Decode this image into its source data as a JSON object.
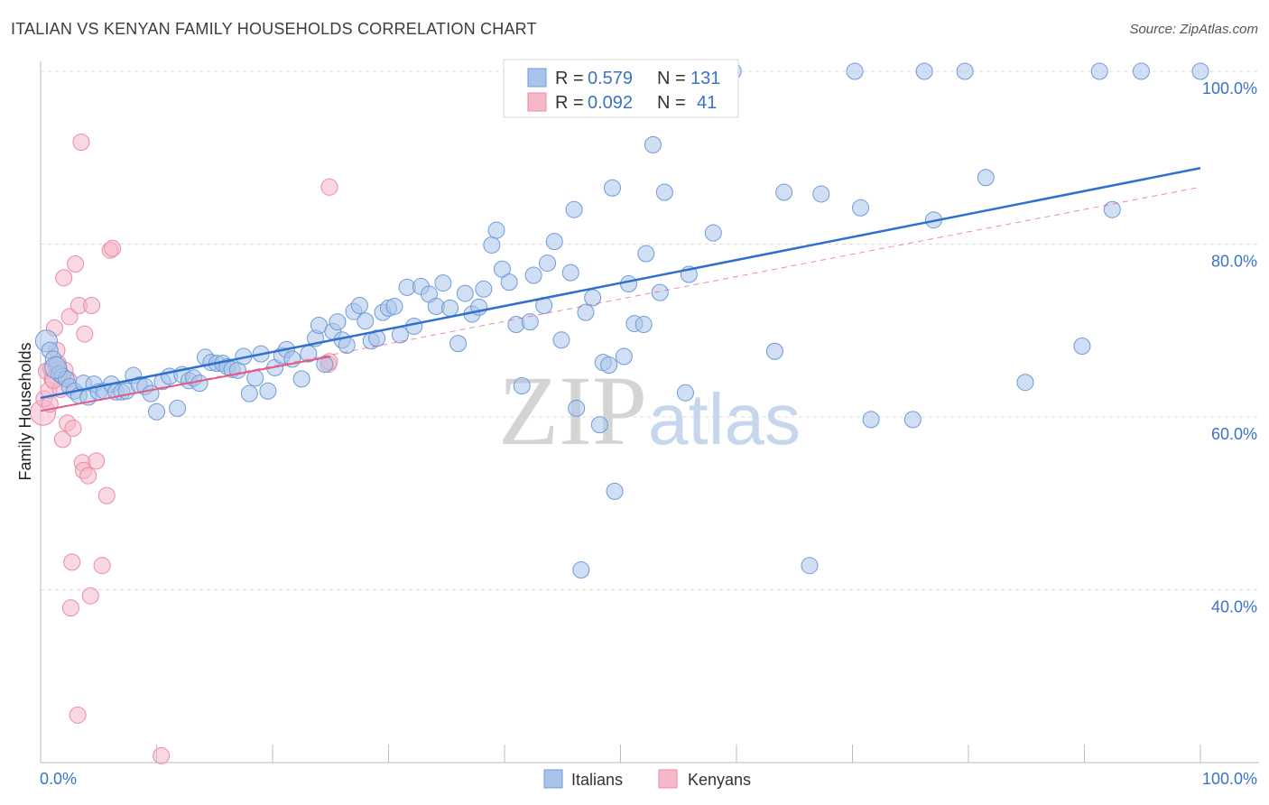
{
  "title": "ITALIAN VS KENYAN FAMILY HOUSEHOLDS CORRELATION CHART",
  "source": "Source: ZipAtlas.com",
  "watermark": {
    "zip": "ZIP",
    "atlas": "atlas"
  },
  "legend_top": {
    "r_label": "R =",
    "n_label": "N =",
    "rows": [
      {
        "r": "0.579",
        "n": "131"
      },
      {
        "r": "0.092",
        "n": "41"
      }
    ]
  },
  "legend_bottom": [
    "Italians",
    "Kenyans"
  ],
  "colors": {
    "italians_fill": "#a9c4ea",
    "italians_stroke": "#6f9bd8",
    "italians_line": "#2f6fce",
    "kenyans_fill": "#f6b8c9",
    "kenyans_stroke": "#ea8aa8",
    "kenyans_line": "#e05b87",
    "tick_text": "#3a73c8"
  },
  "chart_data": {
    "type": "scatter",
    "title": "ITALIAN VS KENYAN FAMILY HOUSEHOLDS CORRELATION CHART",
    "xlabel": "",
    "ylabel": "Family Households",
    "xlim": [
      0,
      100
    ],
    "ylim": [
      20,
      100
    ],
    "x_tick_labels": [
      "0.0%",
      "100.0%"
    ],
    "y_ticks": [
      40,
      60,
      80,
      100
    ],
    "y_tick_labels": [
      "40.0%",
      "60.0%",
      "80.0%",
      "100.0%"
    ],
    "grid": true,
    "series": [
      {
        "name": "Italians",
        "r": 0.579,
        "n": 131,
        "trend": {
          "x": [
            0,
            100
          ],
          "y": [
            62.2,
            88.8
          ]
        },
        "points": [
          [
            0.5,
            68.8
          ],
          [
            0.8,
            67.7
          ],
          [
            1.1,
            66.7
          ],
          [
            1.4,
            66.0
          ],
          [
            1.6,
            65.0
          ],
          [
            1.9,
            64.7
          ],
          [
            2.2,
            64.4
          ],
          [
            2.5,
            63.5
          ],
          [
            2.9,
            63.0
          ],
          [
            3.3,
            62.5
          ],
          [
            3.7,
            63.9
          ],
          [
            4.1,
            62.3
          ],
          [
            4.6,
            63.8
          ],
          [
            5.0,
            62.9
          ],
          [
            5.5,
            63.0
          ],
          [
            6.1,
            63.8
          ],
          [
            6.5,
            62.9
          ],
          [
            7.0,
            62.9
          ],
          [
            7.4,
            63.0
          ],
          [
            8.0,
            64.8
          ],
          [
            8.5,
            63.7
          ],
          [
            9.0,
            63.5
          ],
          [
            9.5,
            62.7
          ],
          [
            10.0,
            60.6
          ],
          [
            10.5,
            64.1
          ],
          [
            11.1,
            64.7
          ],
          [
            11.8,
            61.0
          ],
          [
            12.2,
            64.9
          ],
          [
            12.8,
            64.2
          ],
          [
            13.2,
            64.5
          ],
          [
            13.7,
            63.9
          ],
          [
            14.2,
            66.9
          ],
          [
            14.7,
            66.3
          ],
          [
            15.2,
            66.2
          ],
          [
            15.7,
            66.2
          ],
          [
            16.1,
            65.8
          ],
          [
            16.5,
            65.5
          ],
          [
            17.0,
            65.4
          ],
          [
            17.5,
            67.0
          ],
          [
            18.0,
            62.7
          ],
          [
            18.5,
            64.5
          ],
          [
            19.0,
            67.3
          ],
          [
            19.6,
            63.0
          ],
          [
            20.2,
            65.7
          ],
          [
            20.8,
            67.1
          ],
          [
            21.2,
            67.8
          ],
          [
            21.7,
            66.7
          ],
          [
            22.5,
            64.4
          ],
          [
            23.1,
            67.3
          ],
          [
            23.7,
            69.1
          ],
          [
            24.0,
            70.6
          ],
          [
            24.5,
            66.1
          ],
          [
            25.2,
            69.9
          ],
          [
            25.6,
            71.0
          ],
          [
            26.0,
            68.9
          ],
          [
            26.4,
            68.3
          ],
          [
            27.0,
            72.2
          ],
          [
            27.5,
            72.9
          ],
          [
            28.0,
            71.1
          ],
          [
            28.5,
            68.8
          ],
          [
            29.0,
            69.1
          ],
          [
            29.5,
            72.1
          ],
          [
            30.0,
            72.6
          ],
          [
            30.5,
            72.8
          ],
          [
            31.0,
            69.5
          ],
          [
            31.6,
            75.0
          ],
          [
            32.2,
            70.5
          ],
          [
            32.8,
            75.1
          ],
          [
            33.5,
            74.2
          ],
          [
            34.1,
            72.8
          ],
          [
            34.7,
            75.5
          ],
          [
            35.3,
            72.6
          ],
          [
            36.0,
            68.5
          ],
          [
            36.6,
            74.3
          ],
          [
            37.2,
            71.9
          ],
          [
            37.8,
            72.7
          ],
          [
            38.2,
            74.8
          ],
          [
            38.9,
            79.9
          ],
          [
            39.3,
            81.6
          ],
          [
            39.8,
            77.1
          ],
          [
            40.4,
            75.6
          ],
          [
            41.0,
            70.7
          ],
          [
            41.5,
            63.6
          ],
          [
            42.2,
            71.0
          ],
          [
            42.5,
            76.4
          ],
          [
            43.4,
            72.9
          ],
          [
            43.7,
            77.8
          ],
          [
            44.3,
            80.3
          ],
          [
            44.9,
            68.9
          ],
          [
            45.7,
            76.7
          ],
          [
            46.0,
            84.0
          ],
          [
            46.2,
            61.0
          ],
          [
            46.6,
            42.3
          ],
          [
            47.0,
            72.1
          ],
          [
            47.6,
            73.8
          ],
          [
            48.2,
            59.1
          ],
          [
            48.5,
            66.3
          ],
          [
            49.0,
            66.0
          ],
          [
            49.3,
            86.5
          ],
          [
            49.5,
            51.4
          ],
          [
            50.3,
            67.0
          ],
          [
            50.7,
            75.4
          ],
          [
            51.2,
            70.8
          ],
          [
            52.0,
            70.7
          ],
          [
            52.2,
            78.9
          ],
          [
            52.8,
            91.5
          ],
          [
            53.4,
            74.4
          ],
          [
            53.8,
            86.0
          ],
          [
            55.6,
            62.8
          ],
          [
            55.9,
            76.5
          ],
          [
            58.0,
            81.3
          ],
          [
            59.7,
            100.0
          ],
          [
            63.3,
            67.6
          ],
          [
            64.1,
            86.0
          ],
          [
            66.3,
            42.8
          ],
          [
            67.3,
            85.8
          ],
          [
            70.2,
            100.0
          ],
          [
            70.7,
            84.2
          ],
          [
            71.6,
            59.7
          ],
          [
            75.2,
            59.7
          ],
          [
            76.2,
            100.0
          ],
          [
            77.0,
            82.8
          ],
          [
            79.7,
            100.0
          ],
          [
            81.5,
            87.7
          ],
          [
            84.9,
            64.0
          ],
          [
            89.8,
            68.2
          ],
          [
            91.3,
            100.0
          ],
          [
            92.4,
            84.0
          ],
          [
            94.9,
            100.0
          ],
          [
            100.0,
            100.0
          ],
          [
            1.3,
            65.7
          ]
        ]
      },
      {
        "name": "Kenyans",
        "r": 0.092,
        "n": 41,
        "trend": {
          "x": [
            0,
            25
          ],
          "y": [
            60.7,
            67.0
          ]
        },
        "dashed_trend": {
          "x": [
            0,
            100
          ],
          "y": [
            60.7,
            86.6
          ]
        },
        "points": [
          [
            0.2,
            60.5
          ],
          [
            0.3,
            62.1
          ],
          [
            0.5,
            65.3
          ],
          [
            0.7,
            63.1
          ],
          [
            0.9,
            65.6
          ],
          [
            1.0,
            64.4
          ],
          [
            1.2,
            70.3
          ],
          [
            1.4,
            67.7
          ],
          [
            1.5,
            66.2
          ],
          [
            1.6,
            65.5
          ],
          [
            1.7,
            63.2
          ],
          [
            1.9,
            57.4
          ],
          [
            2.0,
            76.1
          ],
          [
            2.1,
            65.4
          ],
          [
            2.3,
            59.3
          ],
          [
            2.4,
            64.3
          ],
          [
            2.5,
            71.6
          ],
          [
            2.6,
            37.9
          ],
          [
            2.7,
            43.2
          ],
          [
            2.8,
            58.7
          ],
          [
            3.0,
            77.7
          ],
          [
            3.2,
            25.5
          ],
          [
            3.3,
            72.9
          ],
          [
            3.5,
            91.8
          ],
          [
            3.6,
            54.7
          ],
          [
            3.7,
            53.8
          ],
          [
            3.8,
            69.6
          ],
          [
            4.1,
            53.2
          ],
          [
            4.3,
            39.3
          ],
          [
            4.4,
            72.9
          ],
          [
            4.8,
            54.9
          ],
          [
            5.3,
            42.8
          ],
          [
            5.7,
            50.9
          ],
          [
            6.0,
            79.3
          ],
          [
            6.2,
            79.5
          ],
          [
            10.4,
            20.8
          ],
          [
            24.8,
            66.1
          ],
          [
            24.9,
            66.4
          ],
          [
            24.9,
            86.6
          ],
          [
            0.8,
            61.5
          ],
          [
            1.1,
            64.2
          ]
        ]
      }
    ]
  }
}
